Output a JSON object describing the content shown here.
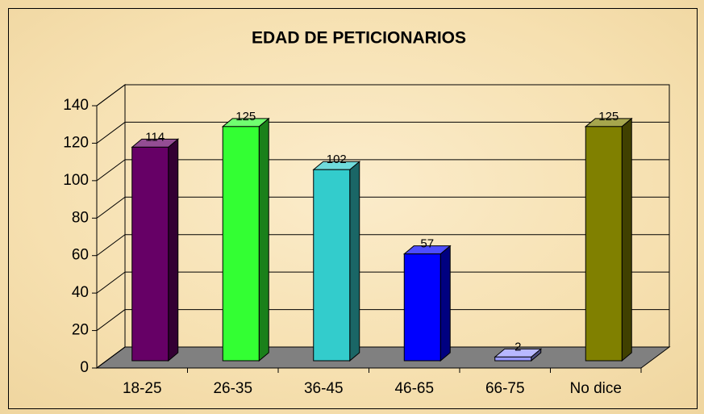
{
  "chart_data": {
    "type": "bar3d",
    "title": "EDAD DE PETICIONARIOS",
    "categories": [
      "18-25",
      "26-35",
      "36-45",
      "46-65",
      "66-75",
      "No dice"
    ],
    "values": [
      114,
      125,
      102,
      57,
      2,
      125
    ],
    "colors": [
      "#660066",
      "#33ff33",
      "#33cccc",
      "#0000ff",
      "#9999ff",
      "#808000"
    ],
    "ylim": [
      0,
      140
    ],
    "yticks": [
      0,
      20,
      40,
      60,
      80,
      100,
      120,
      140
    ],
    "grid": true
  }
}
